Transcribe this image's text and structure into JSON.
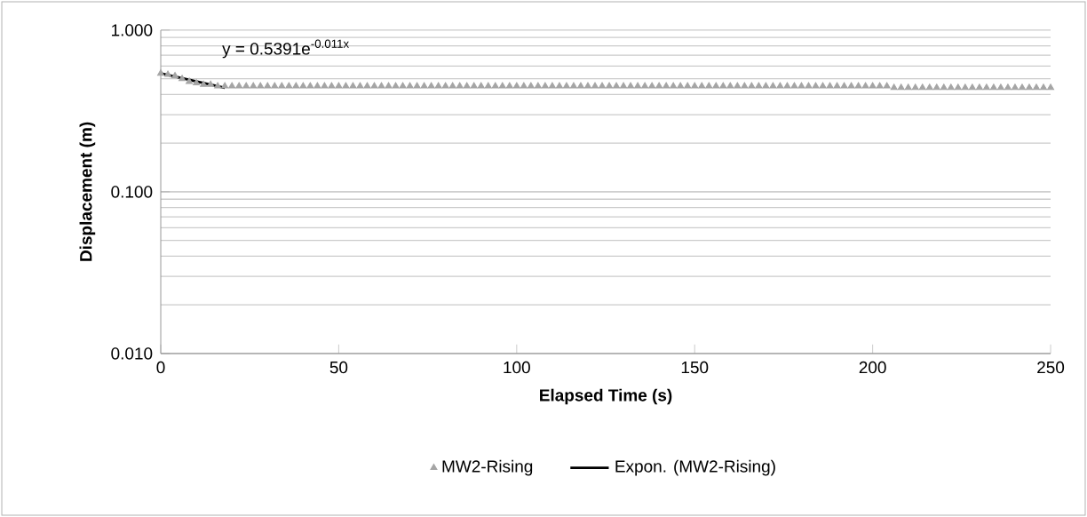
{
  "chart_data": {
    "type": "scatter",
    "xlabel": "Elapsed Time (s)",
    "ylabel": "Displacement (m)",
    "annotations": [
      "y = 0.5391e$^{-0.011x}$"
    ],
    "log": "y",
    "grid": "y",
    "legend": "bottom",
    "xlim": [
      0,
      250
    ],
    "xticks": [
      0,
      50,
      100,
      150,
      200,
      250
    ],
    "ylim": [
      0.01,
      1
    ],
    "yticks": [
      {
        "value": 0.01,
        "label": "0.010"
      },
      {
        "value": 0.1,
        "label": "0.100"
      },
      {
        "value": 1,
        "label": "1.000"
      }
    ],
    "series": [
      {
        "name": "MW2-Rising",
        "type": "scatter",
        "marker": "triangle",
        "color": "#a5a5a5",
        "x": [
          0,
          2,
          4,
          6,
          8,
          10,
          12,
          14,
          16,
          18,
          20,
          22,
          24,
          26,
          28,
          30,
          32,
          34,
          36,
          38,
          40,
          42,
          44,
          46,
          48,
          50,
          52,
          54,
          56,
          58,
          60,
          62,
          64,
          66,
          68,
          70,
          72,
          74,
          76,
          78,
          80,
          82,
          84,
          86,
          88,
          90,
          92,
          94,
          96,
          98,
          100,
          102,
          104,
          106,
          108,
          110,
          112,
          114,
          116,
          118,
          120,
          122,
          124,
          126,
          128,
          130,
          132,
          134,
          136,
          138,
          140,
          142,
          144,
          146,
          148,
          150,
          152,
          154,
          156,
          158,
          160,
          162,
          164,
          166,
          168,
          170,
          172,
          174,
          176,
          178,
          180,
          182,
          184,
          186,
          188,
          190,
          192,
          194,
          196,
          198,
          200,
          202,
          204,
          206,
          208,
          210,
          212,
          214,
          216,
          218,
          220,
          222,
          224,
          226,
          228,
          230,
          232,
          234,
          236,
          238,
          240,
          242,
          244,
          246,
          248,
          250
        ],
        "values": [
          0.54,
          0.53,
          0.52,
          0.5,
          0.48,
          0.47,
          0.46,
          0.46,
          0.45,
          0.45,
          0.45,
          0.45,
          0.45,
          0.45,
          0.45,
          0.45,
          0.45,
          0.45,
          0.45,
          0.45,
          0.45,
          0.45,
          0.45,
          0.45,
          0.45,
          0.45,
          0.45,
          0.45,
          0.45,
          0.45,
          0.45,
          0.45,
          0.45,
          0.45,
          0.45,
          0.45,
          0.45,
          0.45,
          0.45,
          0.45,
          0.45,
          0.45,
          0.45,
          0.45,
          0.45,
          0.45,
          0.45,
          0.45,
          0.45,
          0.45,
          0.45,
          0.45,
          0.45,
          0.45,
          0.45,
          0.45,
          0.45,
          0.45,
          0.45,
          0.45,
          0.45,
          0.45,
          0.45,
          0.45,
          0.45,
          0.45,
          0.45,
          0.45,
          0.45,
          0.45,
          0.45,
          0.45,
          0.45,
          0.45,
          0.45,
          0.45,
          0.45,
          0.45,
          0.45,
          0.45,
          0.45,
          0.45,
          0.45,
          0.45,
          0.45,
          0.45,
          0.45,
          0.45,
          0.45,
          0.45,
          0.45,
          0.45,
          0.45,
          0.45,
          0.45,
          0.45,
          0.45,
          0.45,
          0.45,
          0.45,
          0.45,
          0.45,
          0.45,
          0.44,
          0.44,
          0.44,
          0.44,
          0.44,
          0.44,
          0.44,
          0.44,
          0.44,
          0.44,
          0.44,
          0.44,
          0.44,
          0.44,
          0.44,
          0.44,
          0.44,
          0.44,
          0.44,
          0.44,
          0.44,
          0.44,
          0.44
        ]
      },
      {
        "name": "Expon. (MW2-Rising)",
        "type": "line",
        "marker": "none",
        "color": "#000000",
        "x": [
          0,
          18
        ],
        "values": [
          0.54,
          0.44
        ]
      }
    ]
  }
}
